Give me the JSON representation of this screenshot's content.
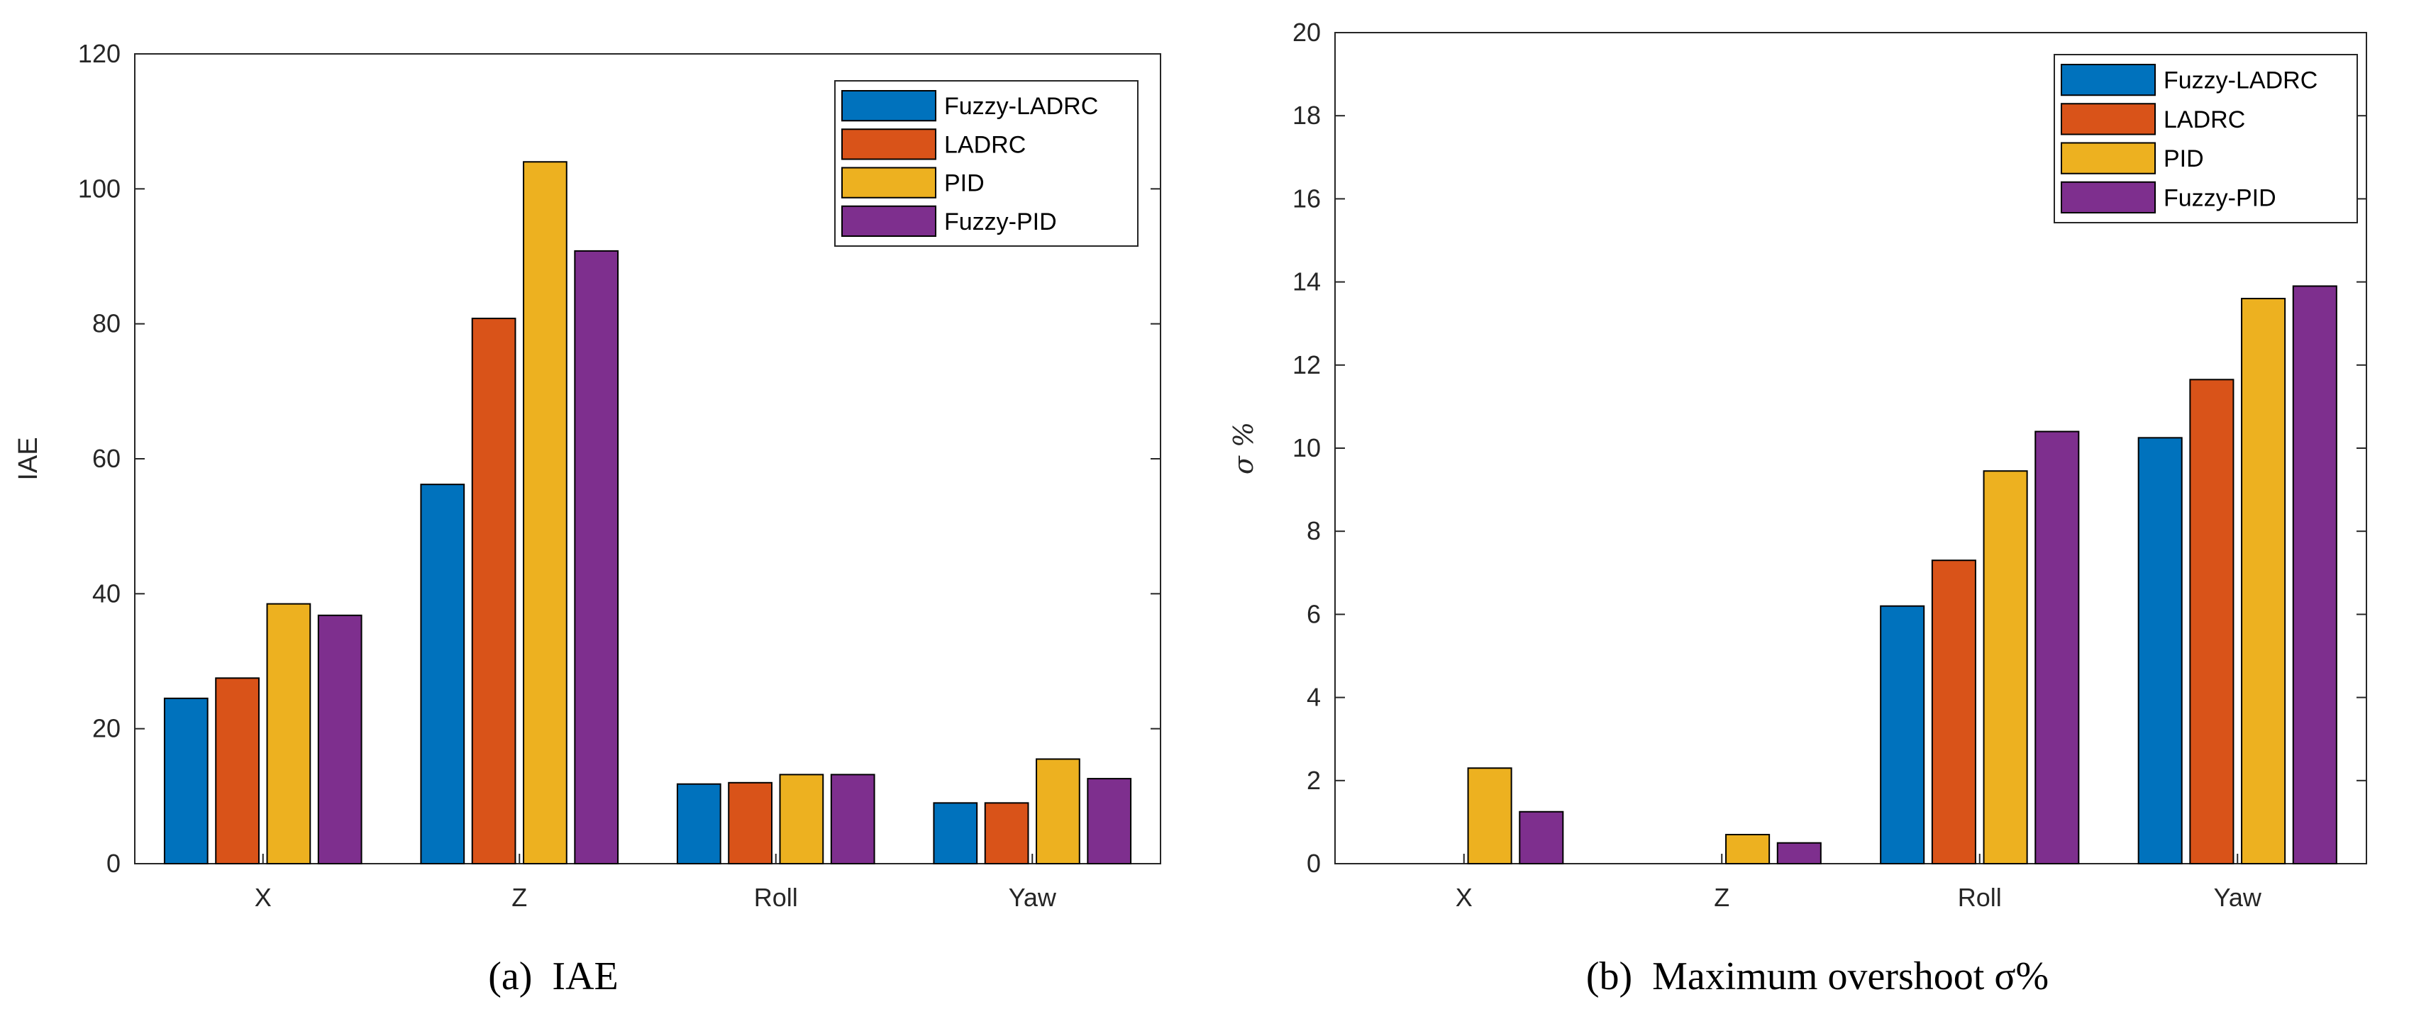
{
  "colors": {
    "series": [
      "#0072BD",
      "#D95319",
      "#EDB120",
      "#7E2F8E"
    ],
    "axis": "#262626",
    "bar_edge": "#000000",
    "background": "#ffffff"
  },
  "captions": {
    "a": "(a) IAE",
    "b": "(b) Maximum overshoot σ%"
  },
  "chart_data": [
    {
      "id": "a",
      "type": "bar",
      "title": "",
      "xlabel": "",
      "ylabel": "IAE",
      "categories": [
        "X",
        "Z",
        "Roll",
        "Yaw"
      ],
      "series": [
        {
          "name": "Fuzzy-LADRC",
          "values": [
            24.5,
            56.2,
            11.8,
            9.0
          ]
        },
        {
          "name": "LADRC",
          "values": [
            27.5,
            80.8,
            12.0,
            9.0
          ]
        },
        {
          "name": "PID",
          "values": [
            38.5,
            104.0,
            13.2,
            15.5
          ]
        },
        {
          "name": "Fuzzy-PID",
          "values": [
            36.8,
            90.8,
            13.2,
            12.6
          ]
        }
      ],
      "ylim": [
        0,
        120
      ],
      "yticks": [
        0,
        20,
        40,
        60,
        80,
        100,
        120
      ],
      "legend": [
        "Fuzzy-LADRC",
        "LADRC",
        "PID",
        "Fuzzy-PID"
      ],
      "legend_position": "top-right"
    },
    {
      "id": "b",
      "type": "bar",
      "title": "",
      "xlabel": "",
      "ylabel": "σ %",
      "categories": [
        "X",
        "Z",
        "Roll",
        "Yaw"
      ],
      "series": [
        {
          "name": "Fuzzy-LADRC",
          "values": [
            0,
            0,
            6.2,
            10.25
          ]
        },
        {
          "name": "LADRC",
          "values": [
            0,
            0,
            7.3,
            11.65
          ]
        },
        {
          "name": "PID",
          "values": [
            2.3,
            0.7,
            9.45,
            13.6
          ]
        },
        {
          "name": "Fuzzy-PID",
          "values": [
            1.25,
            0.5,
            10.4,
            13.9
          ]
        }
      ],
      "ylim": [
        0,
        20
      ],
      "yticks": [
        0,
        2,
        4,
        6,
        8,
        10,
        12,
        14,
        16,
        18,
        20
      ],
      "legend": [
        "Fuzzy-LADRC",
        "LADRC",
        "PID",
        "Fuzzy-PID"
      ],
      "legend_position": "top-right"
    }
  ]
}
